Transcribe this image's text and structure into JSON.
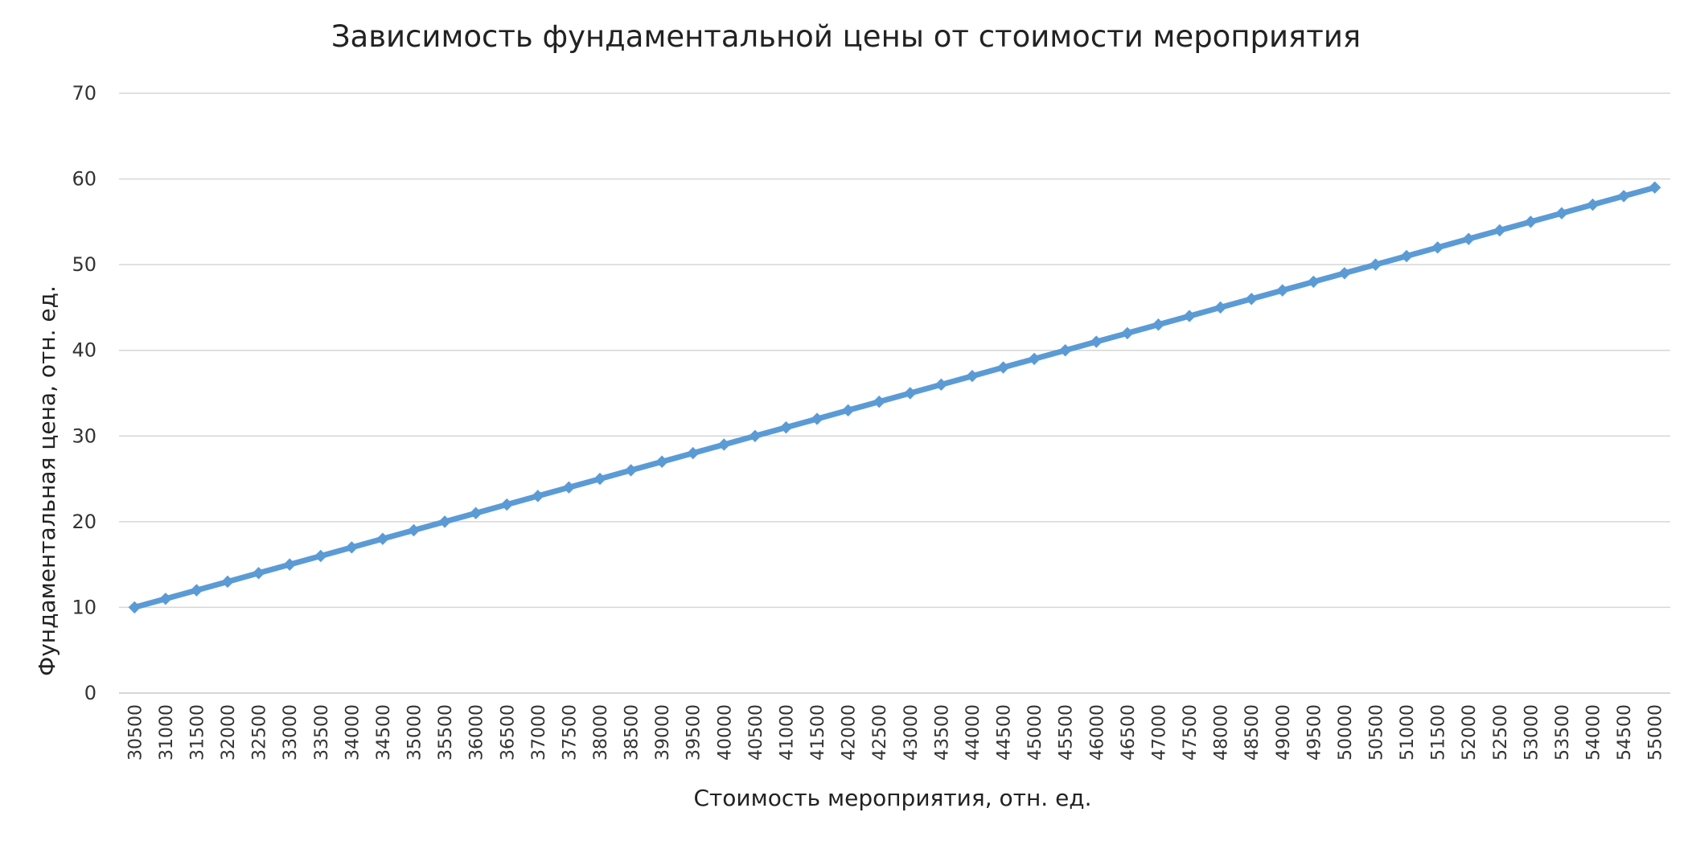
{
  "chart_data": {
    "type": "line",
    "title": "Зависимость фундаментальной цены от стоимости мероприятия",
    "xlabel": "Стоимость мероприятия, отн. ед.",
    "ylabel": "Фундаментальная цена, отн. ед.",
    "ylim": [
      0,
      70
    ],
    "yticks": [
      "0",
      "10",
      "20",
      "30",
      "40",
      "50",
      "60",
      "70"
    ],
    "grid": true,
    "legend": "none",
    "color": "#5b9bd5",
    "categories": [
      "30500",
      "31000",
      "31500",
      "32000",
      "32500",
      "33000",
      "33500",
      "34000",
      "34500",
      "35000",
      "35500",
      "36000",
      "36500",
      "37000",
      "37500",
      "38000",
      "38500",
      "39000",
      "39500",
      "40000",
      "40500",
      "41000",
      "41500",
      "42000",
      "42500",
      "43000",
      "43500",
      "44000",
      "44500",
      "45000",
      "45500",
      "46000",
      "46500",
      "47000",
      "47500",
      "48000",
      "48500",
      "49000",
      "49500",
      "50000",
      "50500",
      "51000",
      "51500",
      "52000",
      "52500",
      "53000",
      "53500",
      "54000",
      "54500",
      "55000"
    ],
    "series": [
      {
        "values": [
          10,
          11,
          12,
          13,
          14,
          15,
          16,
          17,
          18,
          19,
          20,
          21,
          22,
          23,
          24,
          25,
          26,
          27,
          28,
          29,
          30,
          31,
          32,
          33,
          34,
          35,
          36,
          37,
          38,
          39,
          40,
          41,
          42,
          43,
          44,
          45,
          46,
          47,
          48,
          49,
          50,
          51,
          52,
          53,
          54,
          55,
          56,
          57,
          58,
          59
        ]
      }
    ]
  }
}
